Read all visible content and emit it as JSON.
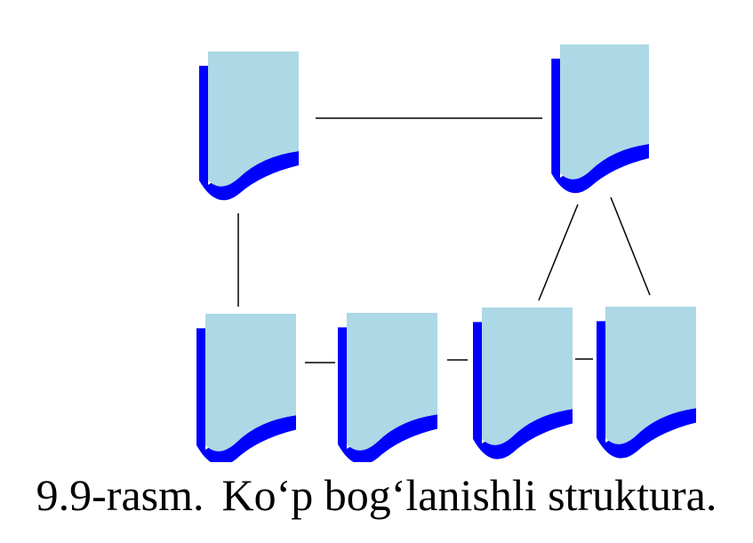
{
  "diagram": {
    "type": "network-of-documents",
    "document_count": 6,
    "colors": {
      "page_fill": "#add8e6",
      "page_shadow": "#0000ff",
      "connector": "#000000",
      "background": "#ffffff"
    },
    "connections": [
      [
        "doc-top-left",
        "doc-top-right"
      ],
      [
        "doc-top-left",
        "doc-bottom-1"
      ],
      [
        "doc-bottom-1",
        "doc-bottom-2"
      ],
      [
        "doc-bottom-2",
        "doc-bottom-3"
      ],
      [
        "doc-bottom-3",
        "doc-bottom-4"
      ],
      [
        "doc-top-right",
        "doc-bottom-3"
      ],
      [
        "doc-top-right",
        "doc-bottom-4"
      ]
    ]
  },
  "caption": {
    "number": "9.9-rasm.",
    "title": "Ko‘p bog‘lanishli struktura."
  }
}
